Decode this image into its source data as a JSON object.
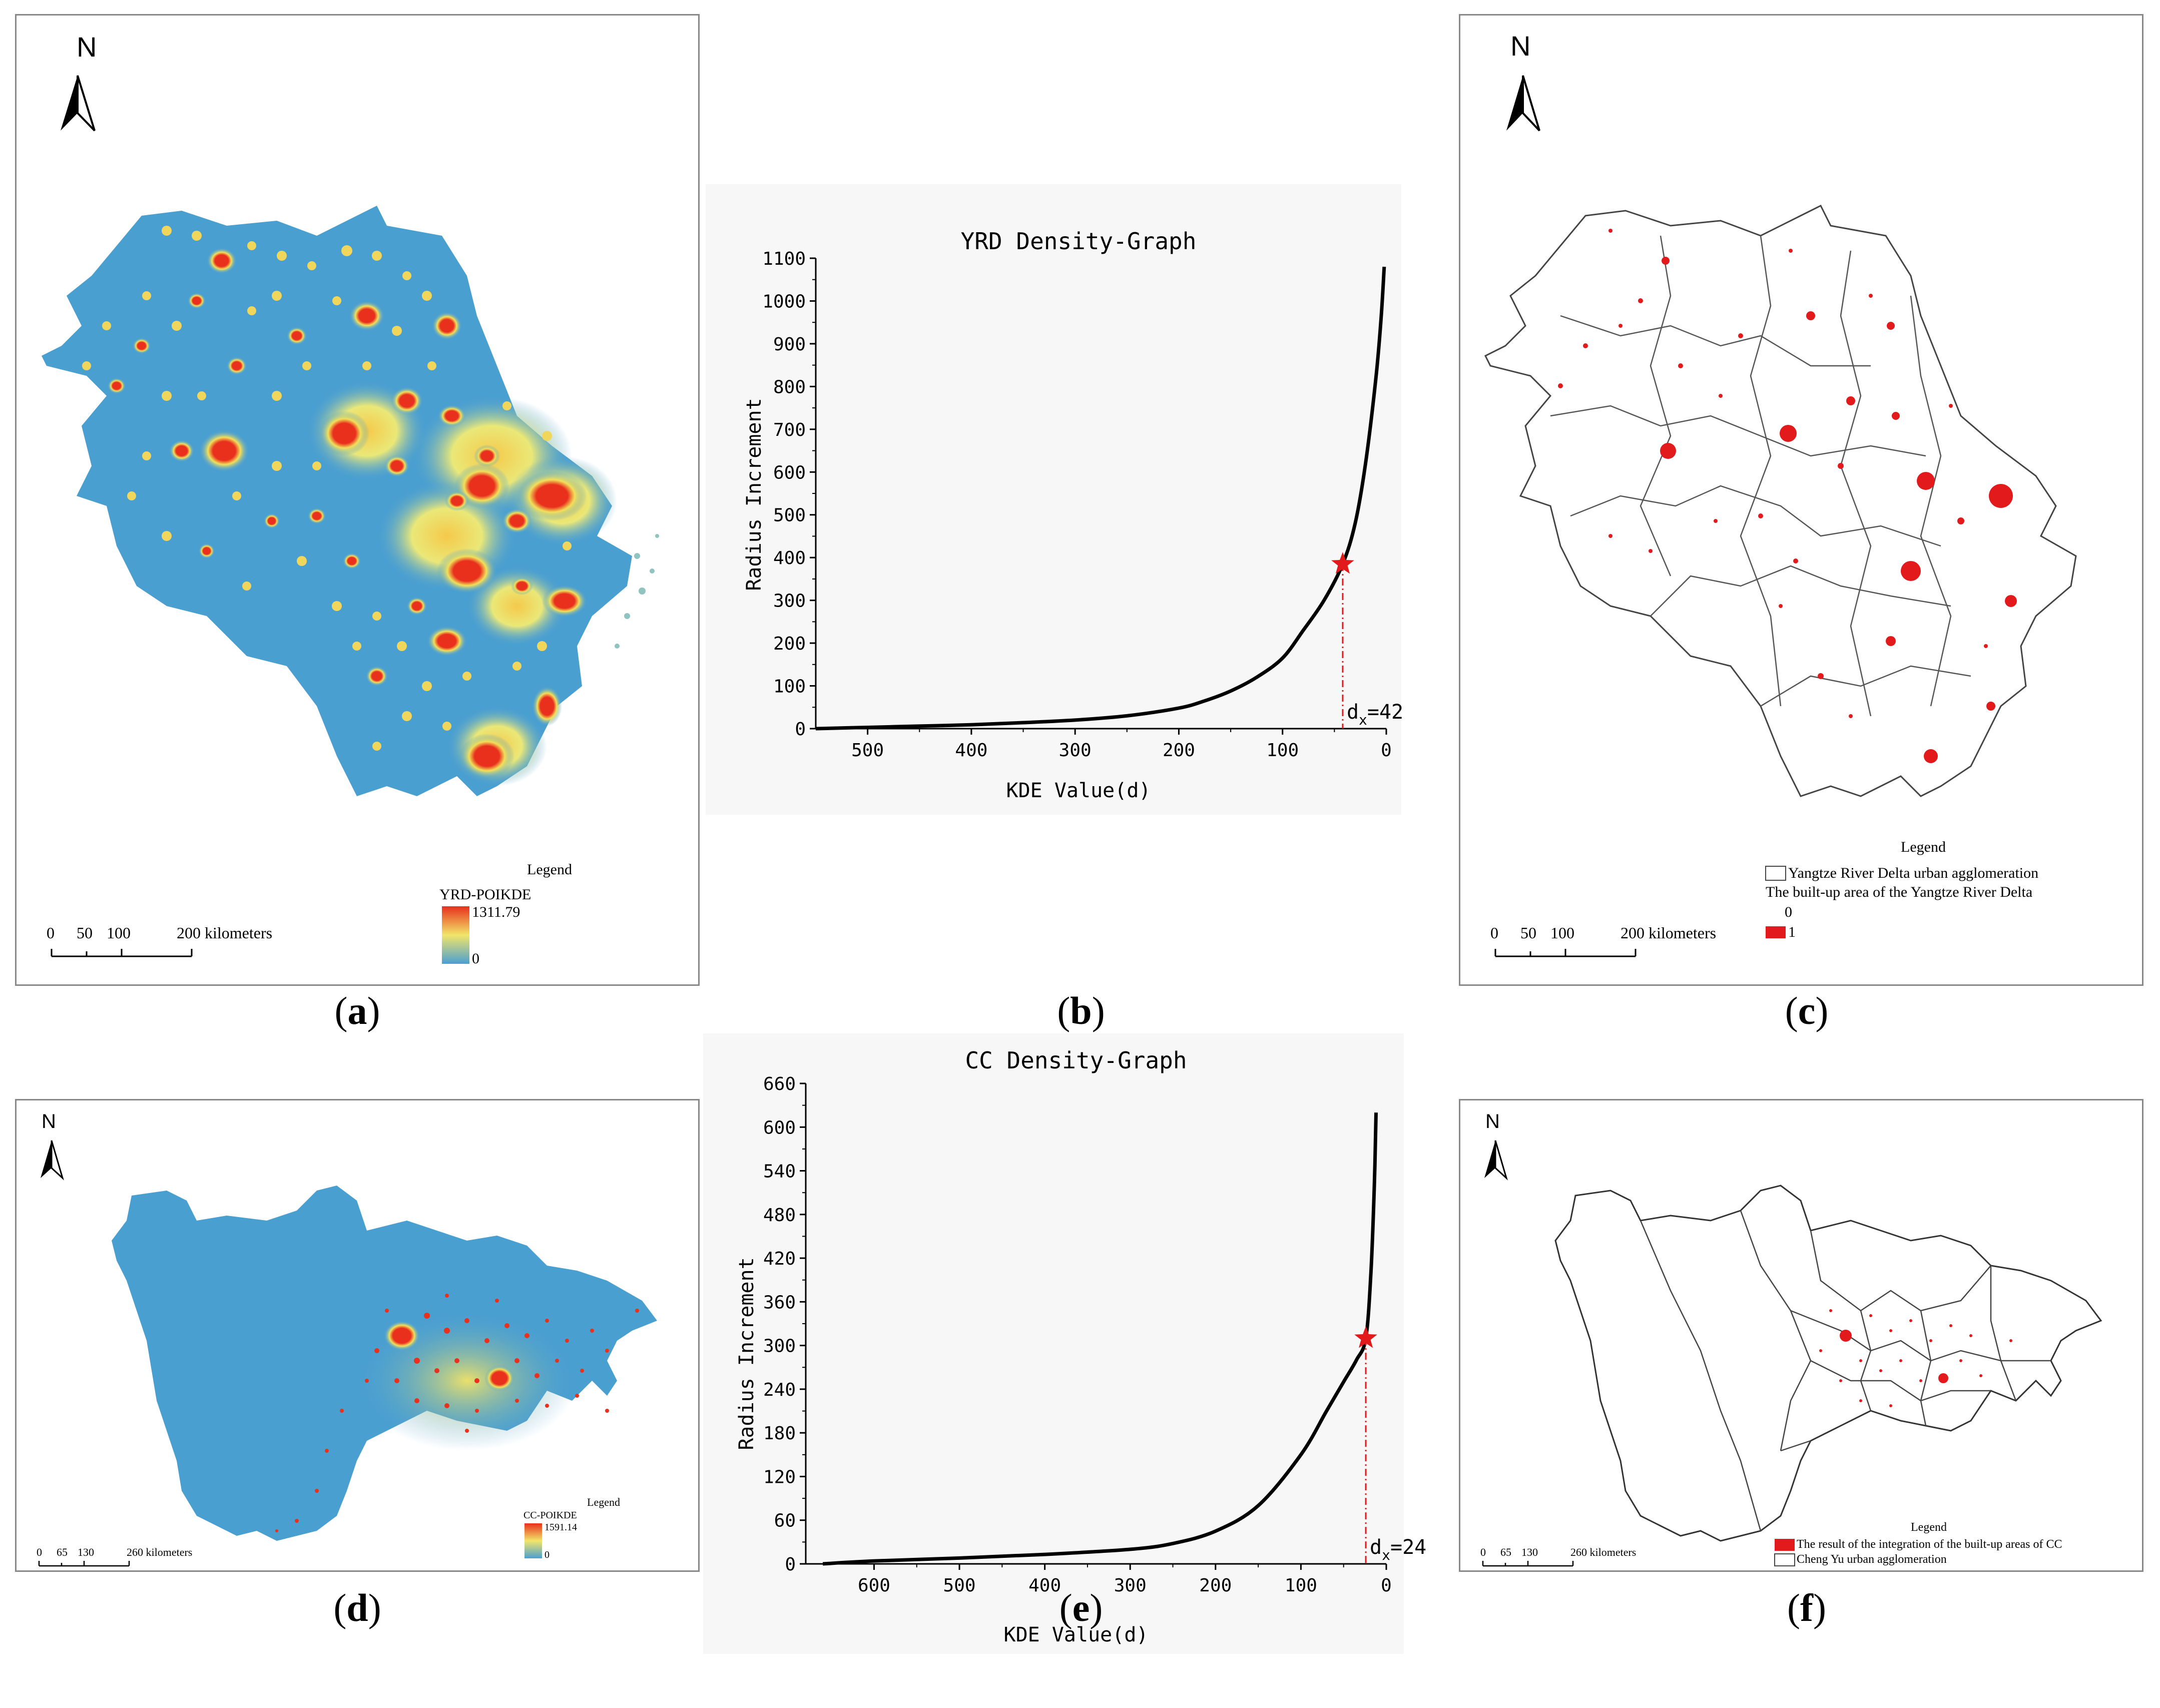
{
  "captions": {
    "a": "a",
    "b": "b",
    "c": "c",
    "d": "d",
    "e": "e",
    "f": "f"
  },
  "panel_a": {
    "north": "N",
    "legend_title": "Legend",
    "layer": "YRD-POIKDE",
    "max": "1311.79",
    "min": "0",
    "scale": [
      "0",
      "50",
      "100",
      "200 kilometers"
    ],
    "colors": {
      "low": "#4a9fd1",
      "mid": "#e8e36a",
      "high": "#e8301c"
    }
  },
  "panel_c": {
    "north": "N",
    "legend_title": "Legend",
    "item1": "Yangtze River Delta urban agglomeration",
    "item2": "The built-up area of the Yangtze River Delta",
    "val0": "0",
    "val1": "1",
    "scale": [
      "0",
      "50",
      "100",
      "200 kilometers"
    ]
  },
  "panel_d": {
    "north": "N",
    "legend_title": "Legend",
    "layer": "CC-POIKDE",
    "max": "1591.14",
    "min": "0",
    "scale": [
      "0",
      "65",
      "130",
      "260 kilometers"
    ]
  },
  "panel_f": {
    "north": "N",
    "legend_title": "Legend",
    "item1": "The result of the integration of the built-up areas of CC",
    "item2": "Cheng Yu urban agglomeration",
    "scale": [
      "0",
      "65",
      "130",
      "260 kilometers"
    ]
  },
  "chart_data": [
    {
      "type": "line",
      "title": "YRD Density-Graph",
      "xlabel": "KDE Value(d)",
      "ylabel": "Radius Increment",
      "xlim": [
        550,
        0
      ],
      "ylim": [
        0,
        1100
      ],
      "xticks": [
        500,
        400,
        300,
        200,
        100,
        0
      ],
      "yticks": [
        0,
        100,
        200,
        300,
        400,
        500,
        600,
        700,
        800,
        900,
        1000,
        1100
      ],
      "x": [
        550,
        500,
        450,
        400,
        350,
        300,
        250,
        200,
        175,
        150,
        125,
        100,
        80,
        60,
        42,
        30,
        20,
        10,
        5,
        2
      ],
      "y": [
        0,
        3,
        6,
        9,
        14,
        20,
        30,
        48,
        65,
        88,
        120,
        165,
        230,
        300,
        385,
        480,
        620,
        820,
        960,
        1080
      ],
      "marker": {
        "x": 42,
        "y": 385,
        "label": "d",
        "sub": "x",
        "text": "=42"
      }
    },
    {
      "type": "line",
      "title": "CC Density-Graph",
      "xlabel": "KDE Value(d)",
      "ylabel": "Radius Increment",
      "xlim": [
        680,
        0
      ],
      "ylim": [
        0,
        660
      ],
      "xticks": [
        600,
        500,
        400,
        300,
        200,
        100,
        0
      ],
      "yticks": [
        0,
        60,
        120,
        180,
        240,
        300,
        360,
        420,
        480,
        540,
        600,
        660
      ],
      "x": [
        660,
        600,
        500,
        400,
        300,
        250,
        200,
        150,
        100,
        70,
        50,
        35,
        24,
        18,
        14,
        12
      ],
      "y": [
        0,
        4,
        8,
        13,
        20,
        28,
        45,
        80,
        150,
        210,
        250,
        280,
        310,
        400,
        520,
        620
      ],
      "marker": {
        "x": 24,
        "y": 310,
        "label": "d",
        "sub": "x",
        "text": "=24"
      }
    }
  ]
}
